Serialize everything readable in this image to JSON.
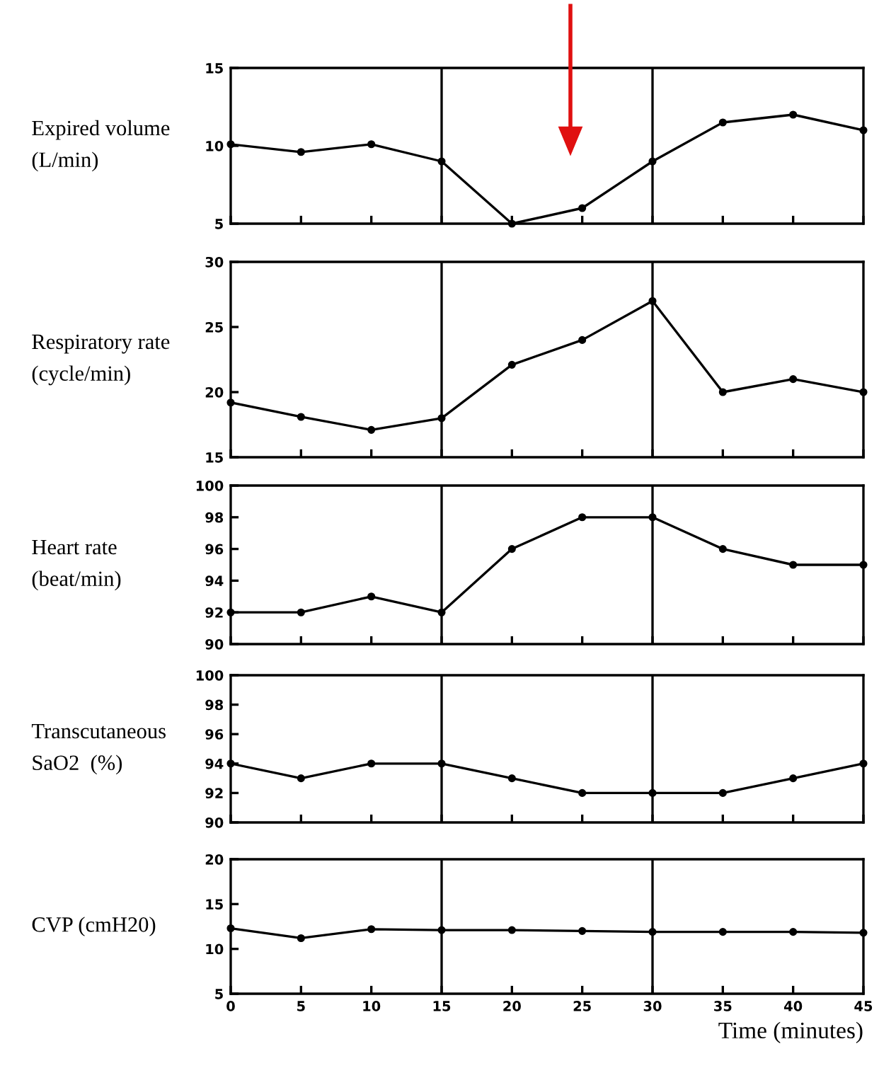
{
  "chart_data": [
    {
      "type": "line",
      "ylabel": "Expired volume\n(L/min)",
      "x": [
        0,
        5,
        10,
        15,
        20,
        25,
        30,
        35,
        40,
        45
      ],
      "values": [
        10.1,
        9.6,
        10.1,
        9.0,
        5.0,
        6.0,
        9.0,
        11.5,
        12.0,
        11.0
      ],
      "color": "#000000",
      "marker": "circle",
      "xlim": [
        0,
        45
      ],
      "xticks": [
        0,
        5,
        10,
        15,
        20,
        25,
        30,
        35,
        40,
        45
      ],
      "ylim": [
        5,
        15
      ],
      "yticks": [
        5,
        10,
        15
      ],
      "tick_labels": "y",
      "grid": false,
      "ref_lines": [
        {
          "axis": "x",
          "value": 15,
          "color": "#000000"
        },
        {
          "axis": "x",
          "value": 30,
          "color": "#000000"
        }
      ]
    },
    {
      "type": "line",
      "ylabel": "Respiratory rate\n(cycle/min)",
      "x": [
        0,
        5,
        10,
        15,
        20,
        25,
        30,
        35,
        40,
        45
      ],
      "values": [
        19.2,
        18.1,
        17.1,
        18.0,
        22.1,
        24.0,
        27.0,
        20.0,
        21.0,
        20.0
      ],
      "color": "#000000",
      "marker": "circle",
      "xlim": [
        0,
        45
      ],
      "xticks": [
        0,
        5,
        10,
        15,
        20,
        25,
        30,
        35,
        40,
        45
      ],
      "ylim": [
        15,
        30
      ],
      "yticks": [
        15,
        20,
        25,
        30
      ],
      "tick_labels": "y",
      "grid": false,
      "ref_lines": [
        {
          "axis": "x",
          "value": 15,
          "color": "#000000"
        },
        {
          "axis": "x",
          "value": 30,
          "color": "#000000"
        }
      ]
    },
    {
      "type": "line",
      "ylabel": "Heart rate\n(beat/min)",
      "x": [
        0,
        5,
        10,
        15,
        20,
        25,
        30,
        35,
        40,
        45
      ],
      "values": [
        92,
        92,
        93,
        92,
        96,
        98,
        98,
        96,
        95,
        95
      ],
      "color": "#000000",
      "marker": "circle",
      "xlim": [
        0,
        45
      ],
      "xticks": [
        0,
        5,
        10,
        15,
        20,
        25,
        30,
        35,
        40,
        45
      ],
      "ylim": [
        90,
        100
      ],
      "yticks": [
        90,
        92,
        94,
        96,
        98,
        100
      ],
      "tick_labels": "y",
      "grid": false,
      "ref_lines": [
        {
          "axis": "x",
          "value": 15,
          "color": "#000000"
        },
        {
          "axis": "x",
          "value": 30,
          "color": "#000000"
        }
      ]
    },
    {
      "type": "line",
      "ylabel": "Transcutaneous\nSaO2  (%)",
      "x": [
        0,
        5,
        10,
        15,
        20,
        25,
        30,
        35,
        40,
        45
      ],
      "values": [
        94,
        93,
        94,
        94,
        93,
        92,
        92,
        92,
        93,
        94
      ],
      "color": "#000000",
      "marker": "circle",
      "xlim": [
        0,
        45
      ],
      "xticks": [
        0,
        5,
        10,
        15,
        20,
        25,
        30,
        35,
        40,
        45
      ],
      "ylim": [
        90,
        100
      ],
      "yticks": [
        90,
        92,
        94,
        96,
        98,
        100
      ],
      "tick_labels": "y",
      "grid": false,
      "ref_lines": [
        {
          "axis": "x",
          "value": 15,
          "color": "#000000"
        },
        {
          "axis": "x",
          "value": 30,
          "color": "#000000"
        }
      ]
    },
    {
      "type": "line",
      "ylabel": "CVP (cmH20)",
      "xlabel": "Time (minutes)",
      "x": [
        0,
        5,
        10,
        15,
        20,
        25,
        30,
        35,
        40,
        45
      ],
      "values": [
        12.3,
        11.2,
        12.2,
        12.1,
        12.1,
        12.0,
        11.9,
        11.9,
        11.9,
        11.8
      ],
      "color": "#000000",
      "marker": "circle",
      "xlim": [
        0,
        45
      ],
      "xticks": [
        0,
        5,
        10,
        15,
        20,
        25,
        30,
        35,
        40,
        45
      ],
      "ylim": [
        5,
        20
      ],
      "yticks": [
        5,
        10,
        15,
        20
      ],
      "grid": false,
      "ref_lines": [
        {
          "axis": "x",
          "value": 15,
          "color": "#000000"
        },
        {
          "axis": "x",
          "value": 30,
          "color": "#000000"
        }
      ]
    }
  ]
}
